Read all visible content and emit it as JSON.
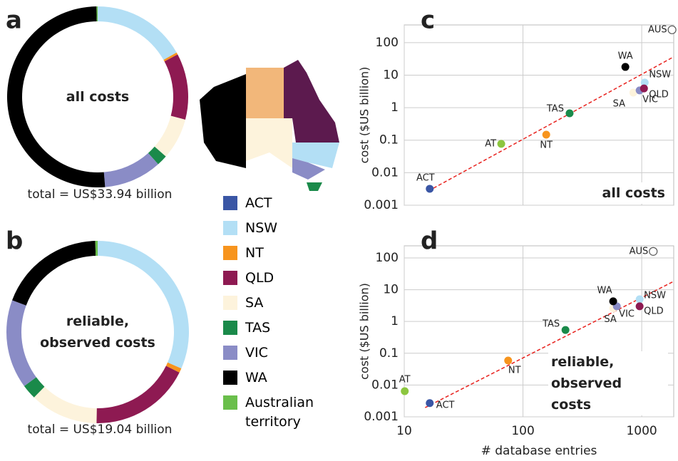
{
  "chart_data": [
    {
      "type": "pie",
      "panel": "a",
      "center_label": "all costs",
      "total_label": "total = US$33.94 billion",
      "categories": [
        "ACT",
        "NSW",
        "NT",
        "QLD",
        "SA",
        "TAS",
        "VIC",
        "WA",
        "Australian territory"
      ],
      "colors": [
        "#3a56a5",
        "#b3dff5",
        "#f7941d",
        "#8e1a52",
        "#fdf3dc",
        "#1a8a4a",
        "#8a8cc6",
        "#000000",
        "#6abf4b"
      ],
      "values": [
        0.003,
        5.7,
        0.13,
        4.0,
        2.5,
        0.65,
        3.5,
        17.3,
        0.07
      ]
    },
    {
      "type": "pie",
      "panel": "b",
      "center_label": "reliable, observed costs",
      "total_label": "total = US$19.04 billion",
      "categories": [
        "ACT",
        "NSW",
        "NT",
        "QLD",
        "SA",
        "TAS",
        "VIC",
        "WA",
        "Australian territory"
      ],
      "colors": [
        "#3a56a5",
        "#b3dff5",
        "#f7941d",
        "#8e1a52",
        "#fdf3dc",
        "#1a8a4a",
        "#8a8cc6",
        "#000000",
        "#6abf4b"
      ],
      "values": [
        0.003,
        6.0,
        0.15,
        3.4,
        2.3,
        0.5,
        3.0,
        3.6,
        0.08
      ]
    },
    {
      "type": "scatter",
      "panel": "c",
      "inset_label": "all costs",
      "ylabel": "cost ($US billion)",
      "labels": [
        "ACT",
        "AT",
        "NT",
        "TAS",
        "SA",
        "VIC",
        "WA",
        "NSW",
        "QLD",
        "AUS"
      ],
      "colors": [
        "#3a56a5",
        "#8cc63f",
        "#f7941d",
        "#1a8a4a",
        "#fdf3dc",
        "#8a8cc6",
        "#000000",
        "#b3dff5",
        "#8e1a52",
        "#ffffff"
      ],
      "markers": [
        "filled",
        "filled",
        "filled",
        "filled",
        "filled",
        "filled",
        "filled",
        "filled",
        "filled",
        "open"
      ],
      "x": [
        16.4,
        65.6,
        157,
        247,
        850,
        960,
        728,
        1060,
        1045,
        1800
      ],
      "y": [
        0.0032,
        0.077,
        0.148,
        0.67,
        2.9,
        3.4,
        17.9,
        5.9,
        3.9,
        248
      ],
      "fit": {
        "x": [
          16,
          1860
        ],
        "y": [
          0.00275,
          36.6
        ],
        "color": "#e8231f"
      },
      "xlim": [
        10,
        1860
      ],
      "ylim": [
        0.001,
        350
      ],
      "xticks": [
        10,
        100,
        1000
      ],
      "yticks": [
        0.001,
        0.01,
        0.1,
        1,
        10,
        100
      ],
      "log_x": true,
      "log_y": true,
      "grid": true
    },
    {
      "type": "scatter",
      "panel": "d",
      "inset_label": "reliable, observed costs",
      "ylabel": "cost ($US billion)",
      "xlabel": "# database entries",
      "labels": [
        "ACT",
        "AT",
        "NT",
        "TAS",
        "SA",
        "VIC",
        "WA",
        "NSW",
        "QLD",
        "AUS"
      ],
      "colors": [
        "#3a56a5",
        "#8cc63f",
        "#f7941d",
        "#1a8a4a",
        "#fdf3dc",
        "#8a8cc6",
        "#000000",
        "#b3dff5",
        "#8e1a52",
        "#ffffff"
      ],
      "markers": [
        "filled",
        "filled",
        "filled",
        "filled",
        "filled",
        "filled",
        "filled",
        "filled",
        "filled",
        "open"
      ],
      "x": [
        16.4,
        10.1,
        75,
        228,
        575,
        617,
        575,
        960,
        960,
        1250
      ],
      "y": [
        0.0027,
        0.0064,
        0.059,
        0.54,
        2.6,
        3.0,
        4.3,
        5.0,
        3.0,
        160
      ],
      "fit": {
        "x": [
          15,
          1860
        ],
        "y": [
          0.00195,
          18.3
        ],
        "color": "#e8231f"
      },
      "xlim": [
        10,
        1860
      ],
      "ylim": [
        0.001,
        240
      ],
      "xticks": [
        10,
        100,
        1000
      ],
      "yticks": [
        0.001,
        0.01,
        0.1,
        1,
        10,
        100
      ],
      "log_x": true,
      "log_y": true,
      "grid": true
    }
  ]
}
